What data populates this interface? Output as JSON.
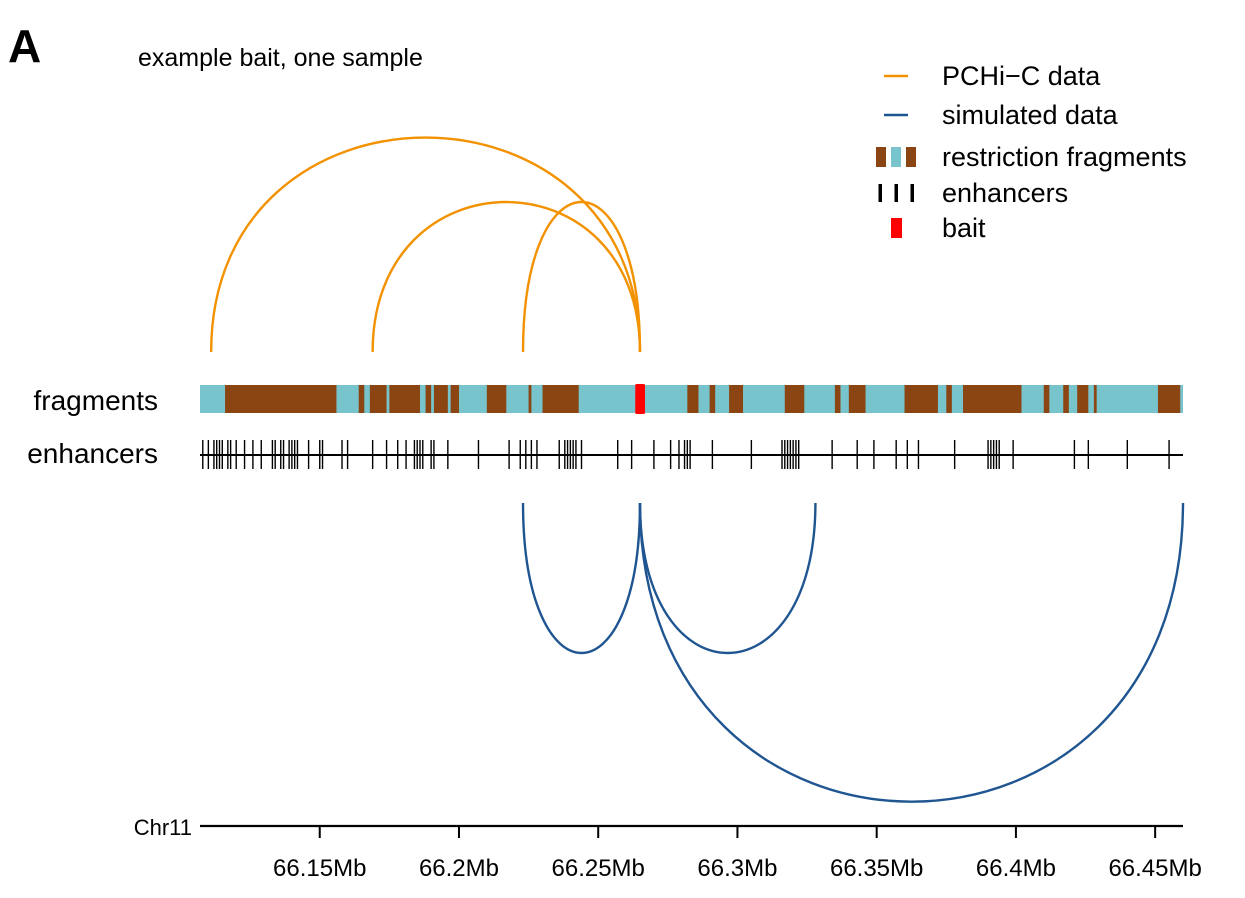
{
  "panel_label": "A",
  "title": "example bait, one sample",
  "legend": {
    "items": [
      {
        "label": "PCHi−C data",
        "symbol": "line",
        "color": "#F39200"
      },
      {
        "label": "simulated data",
        "symbol": "line",
        "color": "#1F5591"
      },
      {
        "label": "restriction fragments",
        "symbol": "fragments",
        "colors": [
          "#8B4513",
          "#77C4CC"
        ]
      },
      {
        "label": "enhancers",
        "symbol": "ticks",
        "color": "#000000"
      },
      {
        "label": "bait",
        "symbol": "box",
        "color": "#FF0000"
      }
    ]
  },
  "track_labels": {
    "fragments": "fragments",
    "enhancers": "enhancers"
  },
  "chart_data": {
    "type": "arc",
    "chromosome": "Chr11",
    "xlim": [
      66.107,
      66.46
    ],
    "x_unit": "Mb",
    "x_ticks": [
      66.15,
      66.2,
      66.25,
      66.3,
      66.35,
      66.4,
      66.45
    ],
    "x_tick_labels": [
      "66.15Mb",
      "66.2Mb",
      "66.25Mb",
      "66.3Mb",
      "66.35Mb",
      "66.4Mb",
      "66.45Mb"
    ],
    "bait": {
      "start": 66.2633,
      "end": 66.2668,
      "color": "#FF0000"
    },
    "series": [
      {
        "name": "PCHi−C data",
        "direction": "up",
        "color": "#F39200",
        "interactions": [
          {
            "from": 66.265,
            "to": 66.111
          },
          {
            "from": 66.265,
            "to": 66.169
          },
          {
            "from": 66.265,
            "to": 66.223
          }
        ]
      },
      {
        "name": "simulated data",
        "direction": "down",
        "color": "#1F5591",
        "interactions": [
          {
            "from": 66.265,
            "to": 66.223
          },
          {
            "from": 66.265,
            "to": 66.328
          },
          {
            "from": 66.265,
            "to": 66.46
          }
        ]
      }
    ],
    "fragments": {
      "colors": {
        "brown": "#8B4513",
        "teal": "#77C4CC"
      },
      "brown_segments": [
        [
          66.116,
          66.156
        ],
        [
          66.164,
          66.166
        ],
        [
          66.168,
          66.174
        ],
        [
          66.175,
          66.186
        ],
        [
          66.188,
          66.19
        ],
        [
          66.191,
          66.196
        ],
        [
          66.197,
          66.2
        ],
        [
          66.21,
          66.217
        ],
        [
          66.225,
          66.226
        ],
        [
          66.23,
          66.243
        ],
        [
          66.282,
          66.286
        ],
        [
          66.29,
          66.292
        ],
        [
          66.297,
          66.302
        ],
        [
          66.317,
          66.324
        ],
        [
          66.335,
          66.337
        ],
        [
          66.34,
          66.346
        ],
        [
          66.36,
          66.372
        ],
        [
          66.375,
          66.377
        ],
        [
          66.381,
          66.402
        ],
        [
          66.41,
          66.412
        ],
        [
          66.417,
          66.419
        ],
        [
          66.422,
          66.426
        ],
        [
          66.428,
          66.429
        ],
        [
          66.451,
          66.459
        ]
      ]
    },
    "enhancers": [
      66.108,
      66.11,
      66.112,
      66.113,
      66.114,
      66.115,
      66.117,
      66.118,
      66.12,
      66.123,
      66.126,
      66.129,
      66.133,
      66.134,
      66.136,
      66.137,
      66.139,
      66.14,
      66.141,
      66.142,
      66.146,
      66.15,
      66.151,
      66.158,
      66.16,
      66.169,
      66.174,
      66.178,
      66.181,
      66.184,
      66.185,
      66.186,
      66.187,
      66.19,
      66.191,
      66.196,
      66.207,
      66.218,
      66.222,
      66.224,
      66.226,
      66.228,
      66.236,
      66.238,
      66.239,
      66.24,
      66.241,
      66.242,
      66.244,
      66.257,
      66.262,
      66.27,
      66.276,
      66.279,
      66.281,
      66.282,
      66.283,
      66.291,
      66.305,
      66.316,
      66.317,
      66.318,
      66.319,
      66.32,
      66.321,
      66.322,
      66.334,
      66.343,
      66.349,
      66.357,
      66.361,
      66.365,
      66.378,
      66.39,
      66.391,
      66.392,
      66.393,
      66.394,
      66.399,
      66.421,
      66.426,
      66.44,
      66.455
    ]
  }
}
